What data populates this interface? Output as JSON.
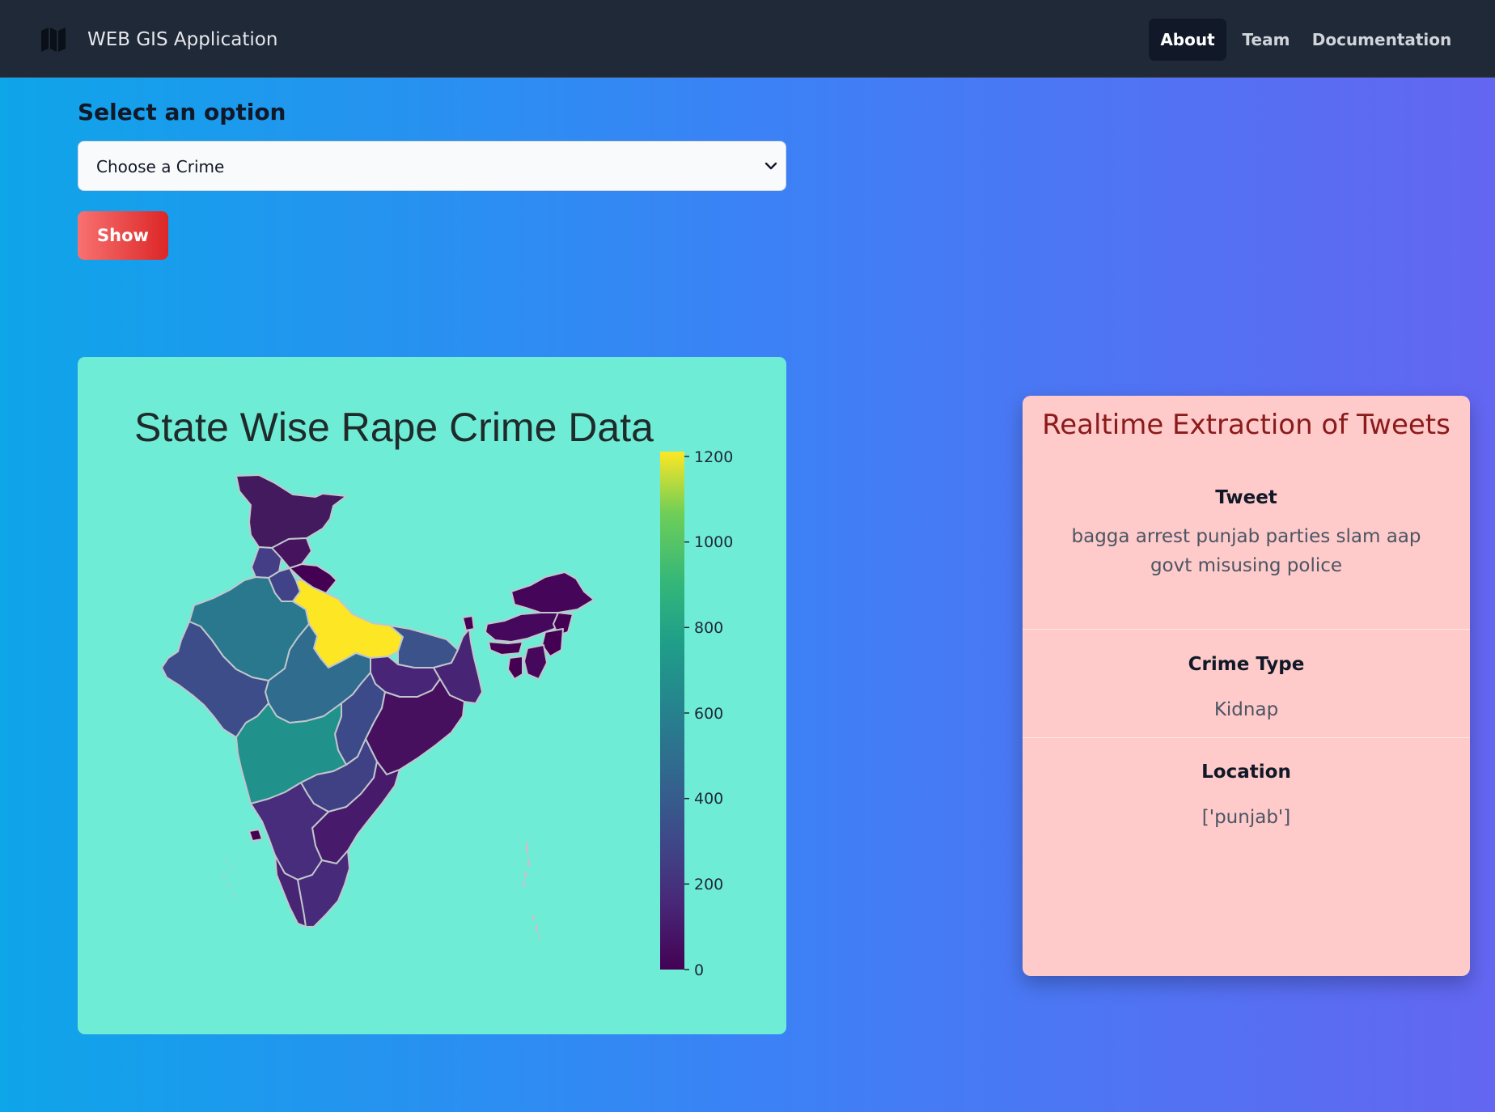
{
  "navbar": {
    "brand": "WEB GIS Application",
    "brand_icon": "map-icon",
    "links": [
      "About",
      "Team",
      "Documentation"
    ],
    "active": "About"
  },
  "form": {
    "label": "Select an option",
    "select_value": "Choose a Crime",
    "button": "Show"
  },
  "map": {
    "title": "State Wise Rape Crime Data",
    "colorbar_ticks": [
      "0",
      "200",
      "400",
      "600",
      "800",
      "1000",
      "1200"
    ],
    "colorscale": "viridis",
    "highlight_color": "#fde725"
  },
  "tweets": {
    "title": "Realtime Extraction of Tweets",
    "tweet_label": "Tweet",
    "tweet_text": "bagga arrest punjab parties slam aap govt misusing police",
    "crime_type_label": "Crime Type",
    "crime_type": "Kidnap",
    "location_label": "Location",
    "location": "['punjab']"
  }
}
